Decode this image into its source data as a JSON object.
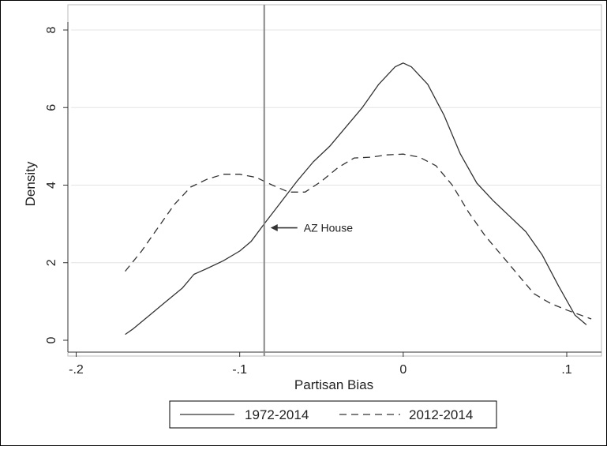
{
  "chart_data": {
    "type": "line",
    "title": "",
    "xlabel": "Partisan Bias",
    "ylabel": "Density",
    "xlim": [
      -0.2,
      0.12
    ],
    "ylim": [
      0,
      8
    ],
    "grid": "horizontal",
    "legend_placement": "bottom",
    "x_ticks": [
      {
        "value": -0.2,
        "label": "-.2"
      },
      {
        "value": -0.1,
        "label": "-.1"
      },
      {
        "value": 0,
        "label": "0"
      },
      {
        "value": 0.1,
        "label": ".1"
      }
    ],
    "y_ticks": [
      {
        "value": 0,
        "label": "0"
      },
      {
        "value": 2,
        "label": "2"
      },
      {
        "value": 4,
        "label": "4"
      },
      {
        "value": 6,
        "label": "6"
      },
      {
        "value": 8,
        "label": "8"
      }
    ],
    "series": [
      {
        "name": "1972-2014",
        "style": "solid",
        "color": "#333333",
        "points": [
          [
            -0.17,
            0.15
          ],
          [
            -0.165,
            0.3
          ],
          [
            -0.155,
            0.65
          ],
          [
            -0.145,
            1.0
          ],
          [
            -0.135,
            1.35
          ],
          [
            -0.128,
            1.7
          ],
          [
            -0.12,
            1.85
          ],
          [
            -0.11,
            2.05
          ],
          [
            -0.1,
            2.3
          ],
          [
            -0.093,
            2.55
          ],
          [
            -0.085,
            3.0
          ],
          [
            -0.075,
            3.55
          ],
          [
            -0.065,
            4.1
          ],
          [
            -0.055,
            4.6
          ],
          [
            -0.045,
            5.0
          ],
          [
            -0.035,
            5.5
          ],
          [
            -0.025,
            6.0
          ],
          [
            -0.015,
            6.6
          ],
          [
            -0.005,
            7.05
          ],
          [
            0.0,
            7.15
          ],
          [
            0.005,
            7.05
          ],
          [
            0.015,
            6.6
          ],
          [
            0.025,
            5.8
          ],
          [
            0.035,
            4.8
          ],
          [
            0.045,
            4.05
          ],
          [
            0.055,
            3.6
          ],
          [
            0.065,
            3.2
          ],
          [
            0.075,
            2.8
          ],
          [
            0.085,
            2.2
          ],
          [
            0.095,
            1.4
          ],
          [
            0.105,
            0.65
          ],
          [
            0.112,
            0.4
          ]
        ]
      },
      {
        "name": "2012-2014",
        "style": "dashed",
        "color": "#333333",
        "points": [
          [
            -0.17,
            1.78
          ],
          [
            -0.16,
            2.3
          ],
          [
            -0.15,
            2.9
          ],
          [
            -0.14,
            3.5
          ],
          [
            -0.13,
            3.95
          ],
          [
            -0.12,
            4.15
          ],
          [
            -0.11,
            4.28
          ],
          [
            -0.1,
            4.28
          ],
          [
            -0.09,
            4.2
          ],
          [
            -0.08,
            4.0
          ],
          [
            -0.07,
            3.82
          ],
          [
            -0.06,
            3.82
          ],
          [
            -0.05,
            4.1
          ],
          [
            -0.04,
            4.45
          ],
          [
            -0.03,
            4.7
          ],
          [
            -0.02,
            4.72
          ],
          [
            -0.01,
            4.78
          ],
          [
            0.0,
            4.8
          ],
          [
            0.01,
            4.72
          ],
          [
            0.02,
            4.5
          ],
          [
            0.03,
            4.0
          ],
          [
            0.04,
            3.3
          ],
          [
            0.05,
            2.7
          ],
          [
            0.06,
            2.2
          ],
          [
            0.07,
            1.7
          ],
          [
            0.08,
            1.2
          ],
          [
            0.09,
            0.95
          ],
          [
            0.1,
            0.78
          ],
          [
            0.115,
            0.55
          ]
        ]
      }
    ],
    "reference_line": {
      "x": -0.085,
      "color": "#888888"
    },
    "annotation": {
      "text": "AZ House",
      "x": -0.085,
      "y": 2.9,
      "arrow": "left"
    }
  }
}
